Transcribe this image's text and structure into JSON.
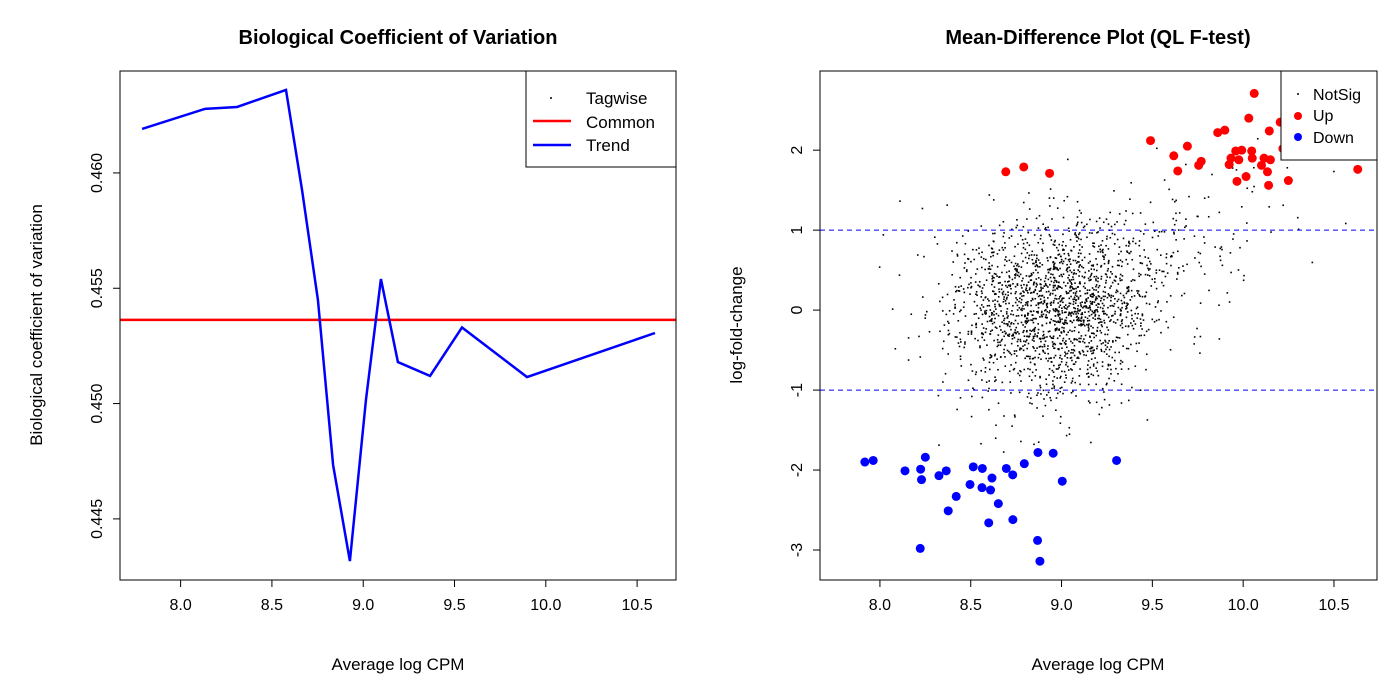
{
  "chart_data": [
    {
      "type": "line",
      "title": "Biological Coefficient of Variation",
      "xlabel": "Average log CPM",
      "ylabel": "Biological coefficient of variation",
      "xlim": [
        7.668,
        10.713
      ],
      "ylim": [
        0.44235,
        0.46442
      ],
      "xticks": [
        8.0,
        8.5,
        9.0,
        9.5,
        10.0,
        10.5
      ],
      "xtick_labels": [
        "8.0",
        "8.5",
        "9.0",
        "9.5",
        "10.0",
        "10.5"
      ],
      "yticks": [
        0.445,
        0.45,
        0.455,
        0.46
      ],
      "ytick_labels": [
        "0.445",
        "0.450",
        "0.455",
        "0.460"
      ],
      "grid": false,
      "legend": {
        "placement": "top-right",
        "entries": [
          "Tagwise",
          "Common",
          "Trend"
        ]
      },
      "colors": {
        "tagwise": "#000000",
        "common": "#ff0000",
        "trend": "#0000ff"
      },
      "common": 0.45363,
      "trend": {
        "x": [
          7.789,
          8.134,
          8.309,
          8.577,
          8.665,
          8.752,
          8.835,
          8.927,
          9.015,
          9.097,
          9.19,
          9.366,
          9.541,
          9.897,
          10.598
        ],
        "y": [
          0.46191,
          0.46278,
          0.46286,
          0.4636,
          0.45926,
          0.45449,
          0.44734,
          0.44317,
          0.45016,
          0.4554,
          0.4518,
          0.4512,
          0.4533,
          0.45115,
          0.45306
        ]
      }
    },
    {
      "type": "scatter",
      "title": "Mean-Difference Plot (QL F-test)",
      "xlabel": "Average log CPM",
      "ylabel": "log-fold-change",
      "xlim": [
        7.67,
        10.737
      ],
      "ylim": [
        -3.375,
        2.99
      ],
      "xticks": [
        8.0,
        8.5,
        9.0,
        9.5,
        10.0,
        10.5
      ],
      "xtick_labels": [
        "8.0",
        "8.5",
        "9.0",
        "9.5",
        "10.0",
        "10.5"
      ],
      "yticks": [
        -3,
        -2,
        -1,
        0,
        1,
        2
      ],
      "ytick_labels": [
        "-3",
        "-2",
        "-1",
        "0",
        "1",
        "2"
      ],
      "grid": false,
      "hlines": [
        1,
        -1
      ],
      "hline_color": "#0000ff",
      "legend": {
        "placement": "top-right",
        "entries": [
          "NotSig",
          "Up",
          "Down"
        ]
      },
      "colors": {
        "NotSig": "#000000",
        "Up": "#ff0000",
        "Down": "#0000ff"
      },
      "series": [
        {
          "name": "Up",
          "points": [
            [
              8.693,
              1.73
            ],
            [
              8.792,
              1.79
            ],
            [
              8.934,
              1.71
            ],
            [
              9.49,
              2.12
            ],
            [
              9.618,
              1.93
            ],
            [
              9.64,
              1.74
            ],
            [
              9.693,
              2.05
            ],
            [
              9.755,
              1.81
            ],
            [
              9.769,
              1.86
            ],
            [
              9.86,
              2.22
            ],
            [
              9.899,
              2.25
            ],
            [
              9.923,
              1.82
            ],
            [
              9.933,
              1.9
            ],
            [
              9.959,
              1.99
            ],
            [
              9.966,
              1.61
            ],
            [
              9.976,
              1.88
            ],
            [
              9.992,
              2.0
            ],
            [
              10.016,
              1.67
            ],
            [
              10.031,
              2.4
            ],
            [
              10.047,
              1.99
            ],
            [
              10.05,
              1.9
            ],
            [
              10.061,
              2.71
            ],
            [
              10.101,
              1.81
            ],
            [
              10.115,
              1.9
            ],
            [
              10.134,
              1.73
            ],
            [
              10.14,
              1.56
            ],
            [
              10.144,
              2.24
            ],
            [
              10.15,
              1.88
            ],
            [
              10.204,
              2.35
            ],
            [
              10.219,
              2.02
            ],
            [
              10.249,
              1.62
            ],
            [
              10.631,
              1.76
            ],
            [
              10.26,
              2.4
            ],
            [
              10.3,
              2.1
            ]
          ]
        },
        {
          "name": "Down",
          "points": [
            [
              7.917,
              -1.9
            ],
            [
              7.963,
              -1.88
            ],
            [
              8.25,
              -1.84
            ],
            [
              8.138,
              -2.01
            ],
            [
              8.224,
              -1.99
            ],
            [
              8.229,
              -2.12
            ],
            [
              8.222,
              -2.98
            ],
            [
              8.325,
              -2.07
            ],
            [
              8.365,
              -2.01
            ],
            [
              8.376,
              -2.51
            ],
            [
              8.42,
              -2.33
            ],
            [
              8.496,
              -2.18
            ],
            [
              8.514,
              -1.96
            ],
            [
              8.564,
              -1.98
            ],
            [
              8.562,
              -2.22
            ],
            [
              8.609,
              -2.25
            ],
            [
              8.617,
              -2.1
            ],
            [
              8.599,
              -2.66
            ],
            [
              8.652,
              -2.42
            ],
            [
              8.696,
              -1.98
            ],
            [
              8.731,
              -2.06
            ],
            [
              8.732,
              -2.62
            ],
            [
              8.795,
              -1.92
            ],
            [
              8.87,
              -1.78
            ],
            [
              8.954,
              -1.79
            ],
            [
              8.868,
              -2.88
            ],
            [
              8.881,
              -3.14
            ],
            [
              9.004,
              -2.14
            ],
            [
              9.303,
              -1.88
            ]
          ]
        },
        {
          "name": "NotSig",
          "distribution": {
            "x_center": 8.95,
            "y_center": 0.0
          }
        }
      ]
    }
  ]
}
